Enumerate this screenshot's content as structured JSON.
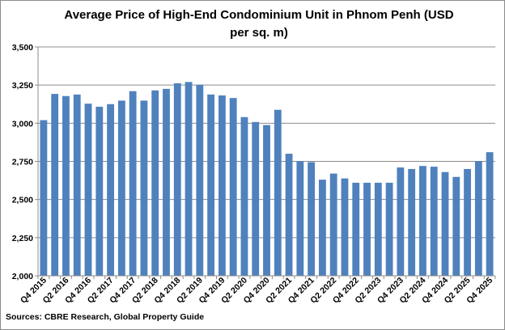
{
  "chart_data": {
    "type": "bar",
    "title_lines": [
      "Average Price of High-End Condominium Unit in Phnom Penh (USD",
      "per sq. m)"
    ],
    "source": "Sources: CBRE Research, Global Property Guide",
    "categories": [
      "Q4 2015",
      "Q1 2016",
      "Q2 2016",
      "Q3 2016",
      "Q4 2016",
      "Q1 2017",
      "Q2 2017",
      "Q3 2017",
      "Q4 2017",
      "Q1 2018",
      "Q2 2018",
      "Q3 2018",
      "Q4 2018",
      "Q1 2019",
      "Q2 2019",
      "Q3 2019",
      "Q4 2019",
      "Q1 2020",
      "Q2 2020",
      "Q3 2020",
      "Q4 2020",
      "Q1 2021",
      "Q2 2021",
      "Q3 2021",
      "Q4 2021",
      "Q1 2022",
      "Q2 2022",
      "Q3 2022",
      "Q4 2022",
      "Q1 2023",
      "Q2 2023",
      "Q3 2023",
      "Q4 2023",
      "Q1 2024",
      "Q2 2024",
      "Q3 2024",
      "Q4 2024",
      "Q1 2025",
      "Q2 2025",
      "Q3 2025",
      "Q4 2025"
    ],
    "x_tick_labels": [
      "Q4 2015",
      "Q2 2016",
      "Q4 2016",
      "Q2 2017",
      "Q4 2017",
      "Q2 2018",
      "Q4 2018",
      "Q2 2019",
      "Q4 2019",
      "Q2 2020",
      "Q4 2020",
      "Q2 2021",
      "Q4 2021",
      "Q2 2022",
      "Q4 2022",
      "Q2 2023",
      "Q4 2023",
      "Q2 2024",
      "Q4 2024",
      "Q2 2025",
      "Q4 2025"
    ],
    "values": [
      3020,
      3192,
      3178,
      3188,
      3128,
      3108,
      3125,
      3148,
      3210,
      3148,
      3215,
      3225,
      3262,
      3270,
      3252,
      3188,
      3182,
      3165,
      3040,
      3008,
      2988,
      3088,
      2800,
      2752,
      2745,
      2630,
      2670,
      2638,
      2610,
      2610,
      2610,
      2610,
      2710,
      2700,
      2720,
      2715,
      2680,
      2648,
      2700,
      2752,
      2810
    ],
    "ylim": [
      2000,
      3500
    ],
    "y_ticks": [
      "2,000",
      "2,250",
      "2,500",
      "2,750",
      "3,000",
      "3,250",
      "3,500"
    ],
    "y_tick_values": [
      2000,
      2250,
      2500,
      2750,
      3000,
      3250,
      3500
    ],
    "grid": true,
    "bar_color": "#4f81bd"
  }
}
